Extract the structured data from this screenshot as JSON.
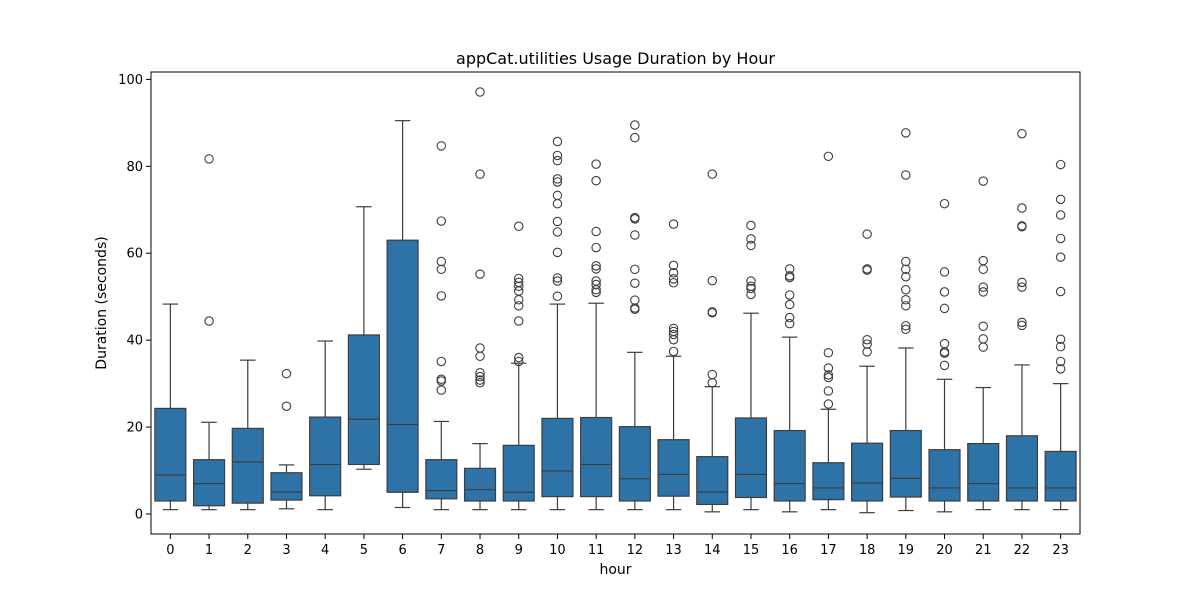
{
  "chart_data": {
    "type": "box",
    "title": "appCat.utilities Usage Duration by Hour",
    "xlabel": "hour",
    "ylabel": "Duration (seconds)",
    "ylim": [
      -4.6,
      101.7
    ],
    "yticks": [
      0,
      20,
      40,
      60,
      80,
      100
    ],
    "grid": false,
    "colors": {
      "box": "#2e73a8",
      "line": "#3d3d3d"
    },
    "categories": [
      "0",
      "1",
      "2",
      "3",
      "4",
      "5",
      "6",
      "7",
      "8",
      "9",
      "10",
      "11",
      "12",
      "13",
      "14",
      "15",
      "16",
      "17",
      "18",
      "19",
      "20",
      "21",
      "22",
      "23"
    ],
    "boxes": [
      {
        "hour": "0",
        "whislo": 1.0,
        "q1": 3.0,
        "median": 9.0,
        "q3": 24.3,
        "whishi": 48.3,
        "fliers": []
      },
      {
        "hour": "1",
        "whislo": 1.0,
        "q1": 1.9,
        "median": 7.0,
        "q3": 12.5,
        "whishi": 21.1,
        "fliers": [
          44.4,
          81.7
        ]
      },
      {
        "hour": "2",
        "whislo": 1.0,
        "q1": 2.5,
        "median": 12.0,
        "q3": 19.7,
        "whishi": 35.4,
        "fliers": []
      },
      {
        "hour": "3",
        "whislo": 1.2,
        "q1": 3.2,
        "median": 5.1,
        "q3": 9.5,
        "whishi": 11.3,
        "fliers": [
          24.8,
          32.3
        ]
      },
      {
        "hour": "4",
        "whislo": 1.0,
        "q1": 4.2,
        "median": 11.4,
        "q3": 22.3,
        "whishi": 39.8,
        "fliers": []
      },
      {
        "hour": "5",
        "whislo": 10.3,
        "q1": 11.4,
        "median": 21.8,
        "q3": 41.2,
        "whishi": 70.7,
        "fliers": []
      },
      {
        "hour": "6",
        "whislo": 1.5,
        "q1": 5.0,
        "median": 20.6,
        "q3": 63.0,
        "whishi": 90.5,
        "fliers": []
      },
      {
        "hour": "7",
        "whislo": 1.0,
        "q1": 3.5,
        "median": 5.4,
        "q3": 12.5,
        "whishi": 21.3,
        "fliers": [
          28.5,
          30.6,
          31.0,
          35.1,
          50.2,
          56.3,
          58.1,
          67.4,
          84.7
        ]
      },
      {
        "hour": "8",
        "whislo": 1.0,
        "q1": 3.0,
        "median": 5.6,
        "q3": 10.5,
        "whishi": 16.2,
        "fliers": [
          30.2,
          30.8,
          31.6,
          32.5,
          36.3,
          38.2,
          55.2,
          78.2,
          97.1
        ]
      },
      {
        "hour": "9",
        "whislo": 1.0,
        "q1": 3.0,
        "median": 5.0,
        "q3": 15.8,
        "whishi": 34.7,
        "fliers": [
          35.1,
          36.0,
          44.4,
          47.9,
          49.3,
          51.3,
          52.4,
          53.3,
          54.2,
          66.2
        ]
      },
      {
        "hour": "10",
        "whislo": 1.0,
        "q1": 4.0,
        "median": 9.9,
        "q3": 22.0,
        "whishi": 48.3,
        "fliers": [
          50.1,
          53.6,
          54.3,
          60.2,
          64.9,
          67.3,
          71.4,
          73.3,
          76.4,
          77.1,
          81.3,
          82.5,
          85.7
        ]
      },
      {
        "hour": "11",
        "whislo": 1.0,
        "q1": 4.0,
        "median": 11.4,
        "q3": 22.2,
        "whishi": 48.5,
        "fliers": [
          51.0,
          51.6,
          52.8,
          53.6,
          56.4,
          57.1,
          61.3,
          65.0,
          76.7,
          80.5
        ]
      },
      {
        "hour": "12",
        "whislo": 1.0,
        "q1": 3.0,
        "median": 8.1,
        "q3": 20.1,
        "whishi": 37.2,
        "fliers": [
          47.1,
          47.4,
          49.2,
          53.1,
          56.3,
          64.2,
          67.9,
          68.2,
          86.6,
          89.5
        ]
      },
      {
        "hour": "13",
        "whislo": 1.0,
        "q1": 4.1,
        "median": 9.1,
        "q3": 17.1,
        "whishi": 36.3,
        "fliers": [
          37.4,
          40.1,
          41.3,
          42.0,
          42.7,
          53.2,
          54.1,
          55.5,
          57.2,
          66.7
        ]
      },
      {
        "hour": "14",
        "whislo": 0.5,
        "q1": 2.2,
        "median": 5.1,
        "q3": 13.2,
        "whishi": 29.3,
        "fliers": [
          30.2,
          32.1,
          46.3,
          46.5,
          53.7,
          78.2
        ]
      },
      {
        "hour": "15",
        "whislo": 1.0,
        "q1": 3.8,
        "median": 9.1,
        "q3": 22.1,
        "whishi": 46.2,
        "fliers": [
          50.5,
          51.9,
          52.4,
          53.6,
          61.8,
          63.3,
          66.4
        ]
      },
      {
        "hour": "16",
        "whislo": 0.5,
        "q1": 3.0,
        "median": 7.0,
        "q3": 19.2,
        "whishi": 40.7,
        "fliers": [
          43.8,
          45.2,
          48.2,
          50.4,
          54.4,
          54.8,
          56.4
        ]
      },
      {
        "hour": "17",
        "whislo": 1.0,
        "q1": 3.3,
        "median": 6.0,
        "q3": 11.8,
        "whishi": 24.1,
        "fliers": [
          25.3,
          28.3,
          31.4,
          32.0,
          33.6,
          37.1,
          82.3
        ]
      },
      {
        "hour": "18",
        "whislo": 0.3,
        "q1": 3.0,
        "median": 7.1,
        "q3": 16.3,
        "whishi": 34.0,
        "fliers": [
          37.3,
          39.1,
          40.1,
          56.1,
          56.4,
          64.4
        ]
      },
      {
        "hour": "19",
        "whislo": 0.8,
        "q1": 3.9,
        "median": 8.2,
        "q3": 19.2,
        "whishi": 38.2,
        "fliers": [
          42.5,
          43.3,
          47.9,
          49.3,
          51.6,
          54.6,
          56.3,
          58.1,
          78.0,
          87.7
        ]
      },
      {
        "hour": "20",
        "whislo": 0.5,
        "q1": 3.0,
        "median": 6.0,
        "q3": 14.8,
        "whishi": 31.0,
        "fliers": [
          34.2,
          37.0,
          37.3,
          39.2,
          47.3,
          51.1,
          55.7,
          71.4
        ]
      },
      {
        "hour": "21",
        "whislo": 1.0,
        "q1": 3.0,
        "median": 7.0,
        "q3": 16.2,
        "whishi": 29.1,
        "fliers": [
          38.4,
          40.3,
          43.2,
          51.1,
          52.2,
          56.3,
          58.3,
          76.6
        ]
      },
      {
        "hour": "22",
        "whislo": 1.0,
        "q1": 3.0,
        "median": 6.0,
        "q3": 18.0,
        "whishi": 34.3,
        "fliers": [
          43.4,
          44.1,
          52.2,
          53.3,
          66.1,
          66.3,
          70.4,
          87.5
        ]
      },
      {
        "hour": "23",
        "whislo": 1.0,
        "q1": 3.0,
        "median": 6.0,
        "q3": 14.4,
        "whishi": 30.0,
        "fliers": [
          33.4,
          35.1,
          38.5,
          40.2,
          51.2,
          59.1,
          63.4,
          68.8,
          72.4,
          80.4
        ]
      }
    ]
  }
}
